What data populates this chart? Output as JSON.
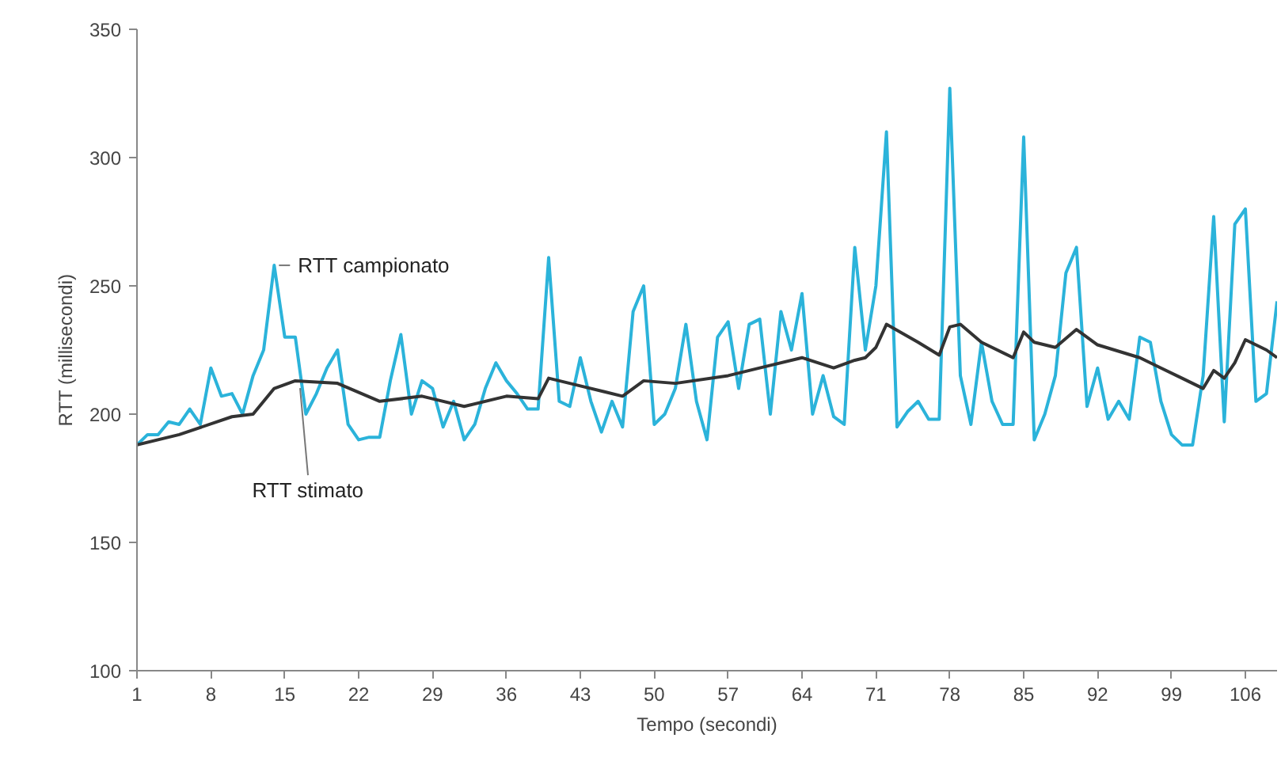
{
  "chart_data": {
    "type": "line",
    "xlabel": "Tempo (secondi)",
    "ylabel": "RTT (millisecondi)",
    "xlim": [
      1,
      109
    ],
    "ylim": [
      100,
      350
    ],
    "xticks": [
      1,
      8,
      15,
      22,
      29,
      36,
      43,
      50,
      57,
      64,
      71,
      78,
      85,
      92,
      99,
      106
    ],
    "yticks": [
      100,
      150,
      200,
      250,
      300,
      350
    ],
    "grid": false,
    "marker": "none",
    "line_style": "solid",
    "series": [
      {
        "color": "#2bb3da",
        "x": [
          1,
          2,
          3,
          4,
          5,
          6,
          7,
          8,
          9,
          10,
          11,
          12,
          13,
          14,
          15,
          16,
          17,
          18,
          19,
          20,
          21,
          22,
          23,
          24,
          25,
          26,
          27,
          28,
          29,
          30,
          31,
          32,
          33,
          34,
          35,
          36,
          37,
          38,
          39,
          40,
          41,
          42,
          43,
          44,
          45,
          46,
          47,
          48,
          49,
          50,
          51,
          52,
          53,
          54,
          55,
          56,
          57,
          58,
          59,
          60,
          61,
          62,
          63,
          64,
          65,
          66,
          67,
          68,
          69,
          70,
          71,
          72,
          73,
          74,
          75,
          76,
          77,
          78,
          79,
          80,
          81,
          82,
          83,
          84,
          85,
          86,
          87,
          88,
          89,
          90,
          91,
          92,
          93,
          94,
          95,
          96,
          97,
          98,
          99,
          100,
          101,
          102,
          103,
          104,
          105,
          106,
          107,
          108,
          109
        ],
        "values": [
          188,
          192,
          192,
          197,
          196,
          202,
          196,
          218,
          207,
          208,
          200,
          215,
          225,
          258,
          230,
          230,
          200,
          208,
          218,
          225,
          196,
          190,
          191,
          191,
          213,
          231,
          200,
          213,
          210,
          195,
          205,
          190,
          196,
          210,
          220,
          213,
          208,
          202,
          202,
          261,
          205,
          203,
          222,
          205,
          193,
          205,
          195,
          240,
          250,
          196,
          200,
          210,
          235,
          205,
          190,
          230,
          236,
          210,
          235,
          237,
          200,
          240,
          225,
          247,
          200,
          215,
          199,
          196,
          265,
          225,
          250,
          310,
          195,
          201,
          205,
          198,
          198,
          327,
          215,
          196,
          228,
          205,
          196,
          196,
          308,
          190,
          200,
          215,
          255,
          265,
          203,
          218,
          198,
          205,
          198,
          230,
          228,
          205,
          192,
          188,
          188,
          215,
          277,
          197,
          274,
          280,
          205,
          208,
          244
        ]
      },
      {
        "color": "#333333",
        "x": [
          1,
          5,
          10,
          12,
          14,
          16,
          20,
          24,
          28,
          32,
          36,
          39,
          40,
          43,
          47,
          49,
          52,
          57,
          60,
          64,
          67,
          69,
          70,
          71,
          72,
          75,
          77,
          78,
          79,
          81,
          84,
          85,
          86,
          88,
          90,
          92,
          96,
          98,
          100,
          102,
          103,
          104,
          105,
          106,
          108,
          109
        ],
        "values": [
          188,
          192,
          199,
          200,
          210,
          213,
          212,
          205,
          207,
          203,
          207,
          206,
          214,
          211,
          207,
          213,
          212,
          215,
          218,
          222,
          218,
          221,
          222,
          226,
          235,
          228,
          223,
          234,
          235,
          228,
          222,
          232,
          228,
          226,
          233,
          227,
          222,
          218,
          214,
          210,
          217,
          214,
          220,
          229,
          225,
          222
        ]
      }
    ],
    "annotations": [
      {
        "text": "RTT campionato",
        "x": 14,
        "y": 258
      },
      {
        "text": "RTT stimato",
        "x": 16,
        "y": 212
      }
    ]
  }
}
